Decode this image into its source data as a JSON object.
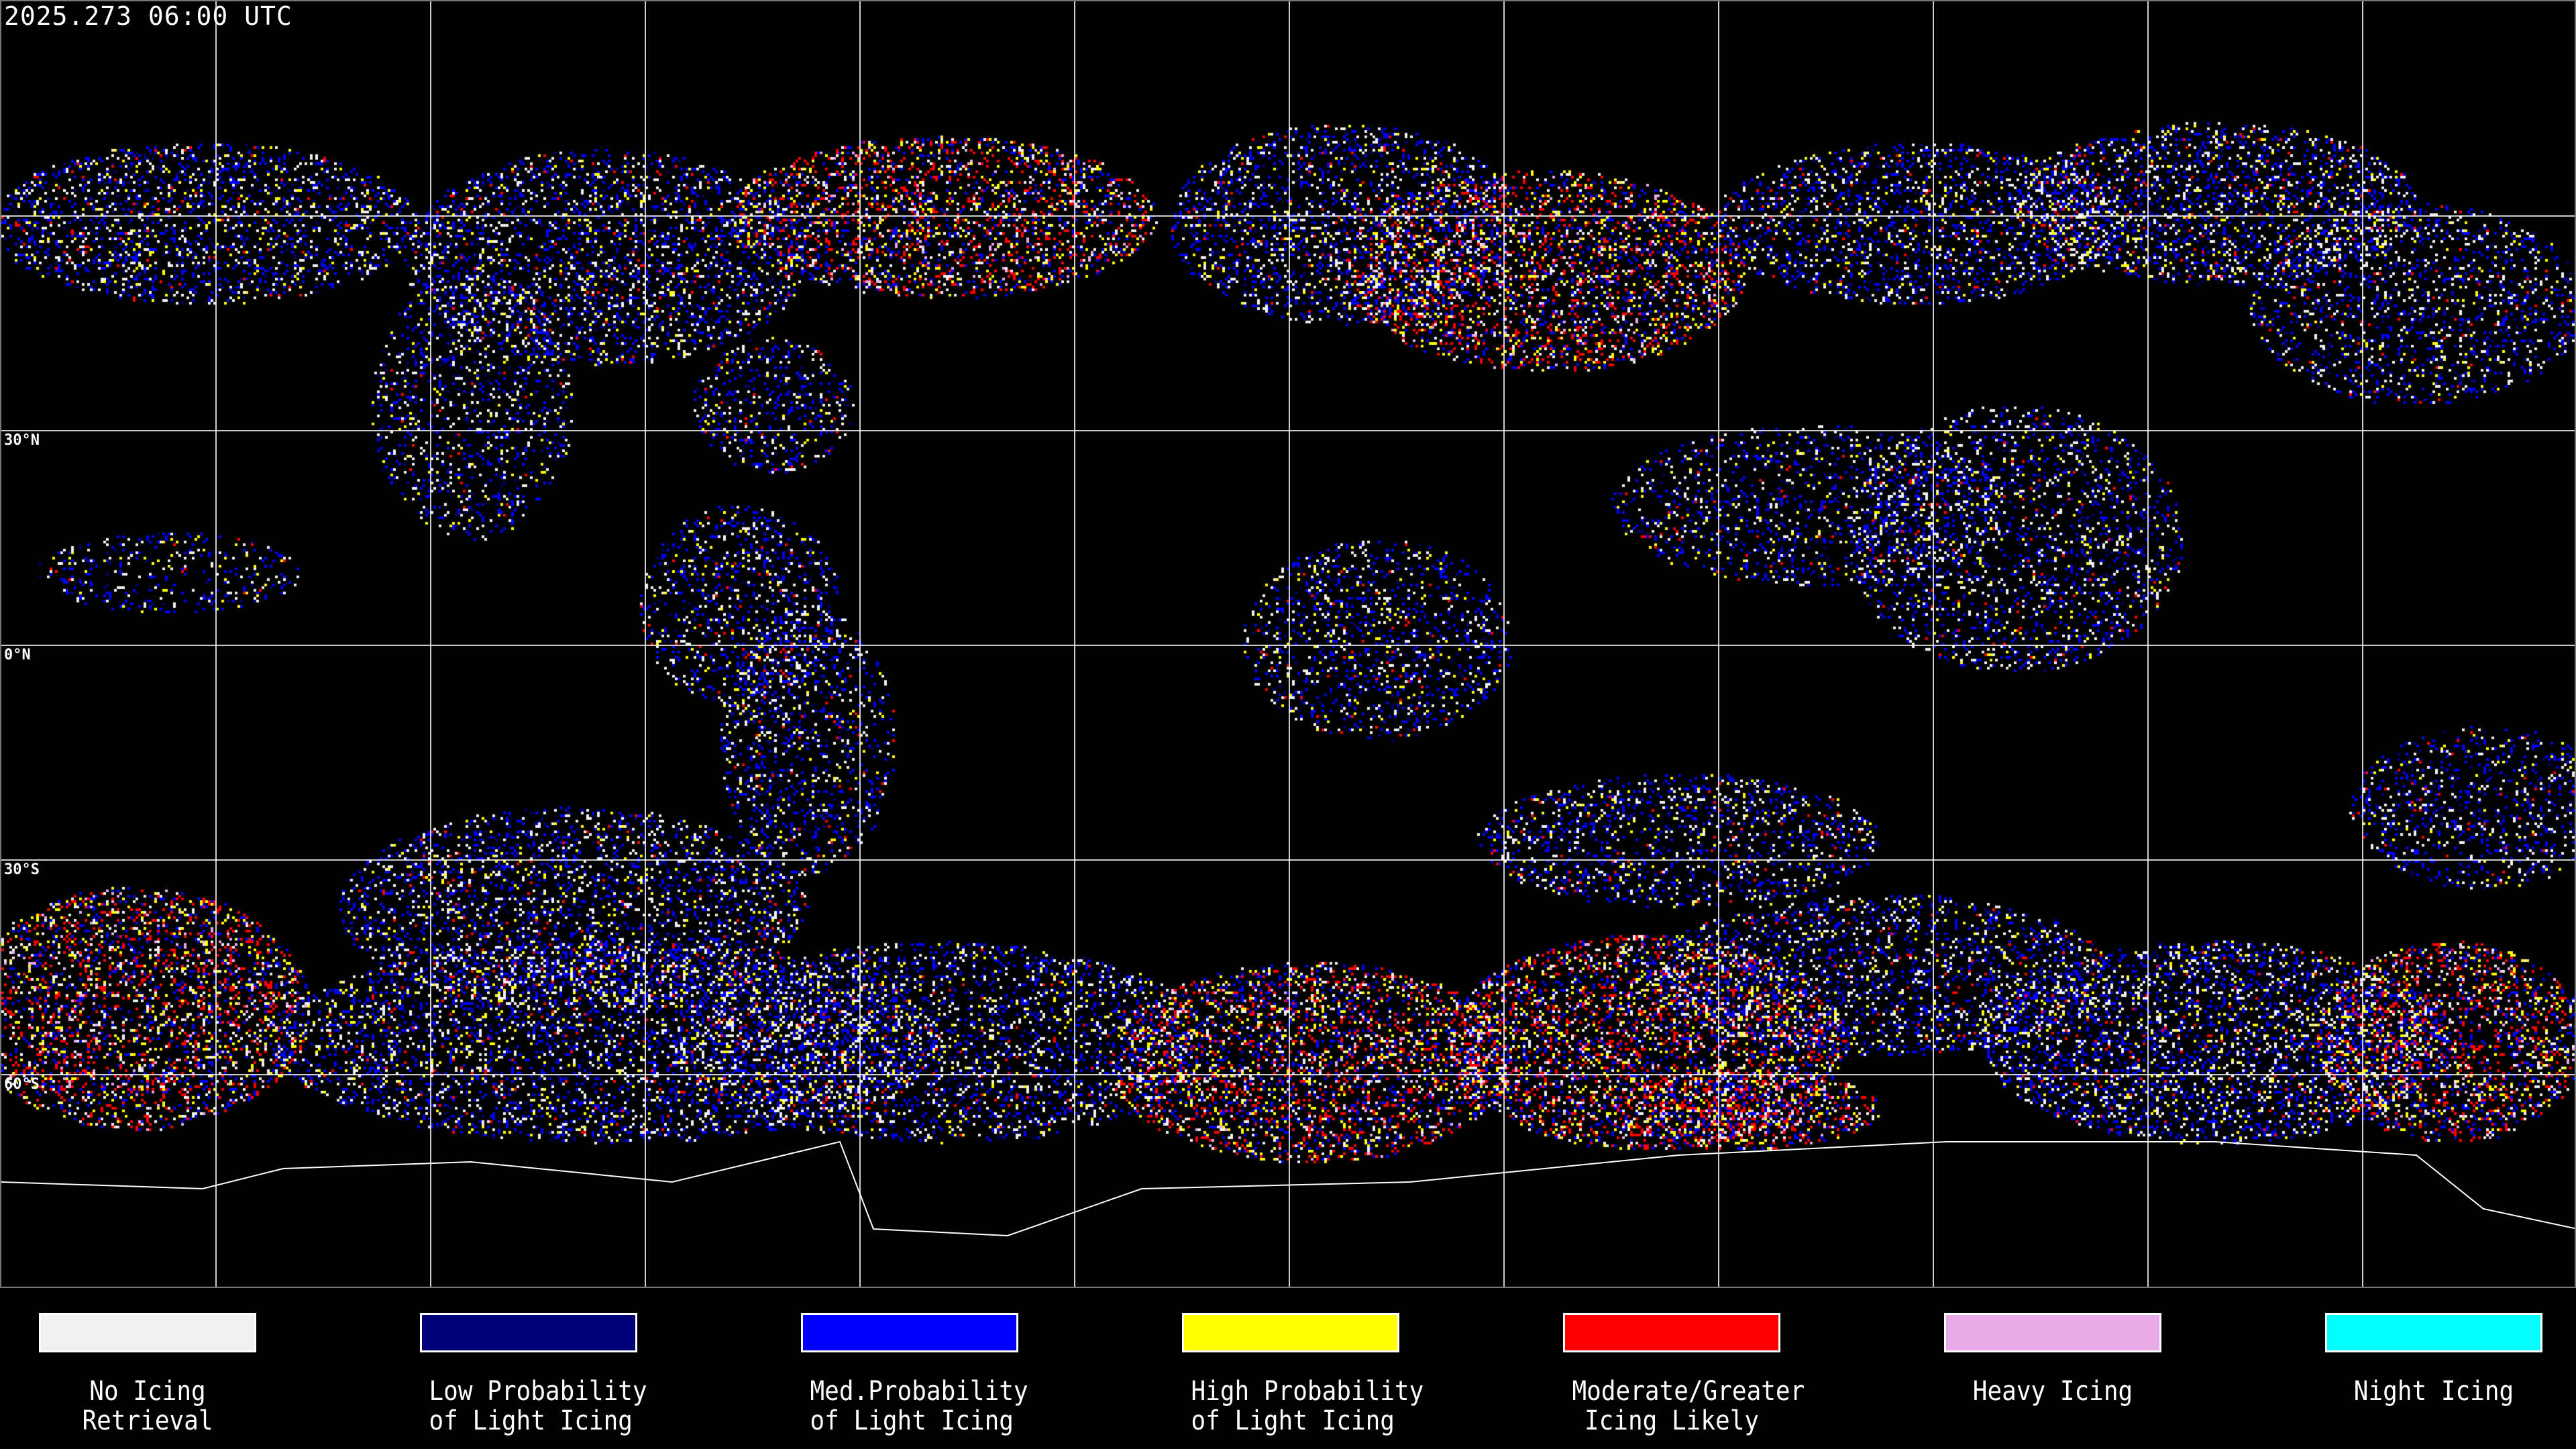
{
  "header": {
    "timestamp": "2025.273 06:00 UTC"
  },
  "map": {
    "projection": "equirectangular",
    "grid_spacing_degrees": 30,
    "latitude_labels": [
      "30°N",
      "0°N",
      "30°S",
      "60°S"
    ],
    "background_color": "#000000",
    "grid_color": "#ffffff",
    "coastline_color": "#ffffff"
  },
  "legend": {
    "items": [
      {
        "line1": "No Icing",
        "line2": "Retrieval",
        "color": "#f0f0f0"
      },
      {
        "line1": "Low Probability",
        "line2": "of Light Icing",
        "color": "#000078"
      },
      {
        "line1": "Med.Probability",
        "line2": "of Light Icing",
        "color": "#0000ff"
      },
      {
        "line1": "High Probability",
        "line2": "of Light Icing",
        "color": "#ffff00"
      },
      {
        "line1": "Moderate/Greater",
        "line2": "Icing Likely",
        "color": "#ff0000"
      },
      {
        "line1": "Heavy Icing",
        "line2": "",
        "color": "#e8aae6"
      },
      {
        "line1": "Night Icing",
        "line2": "",
        "color": "#00ffff"
      }
    ]
  }
}
